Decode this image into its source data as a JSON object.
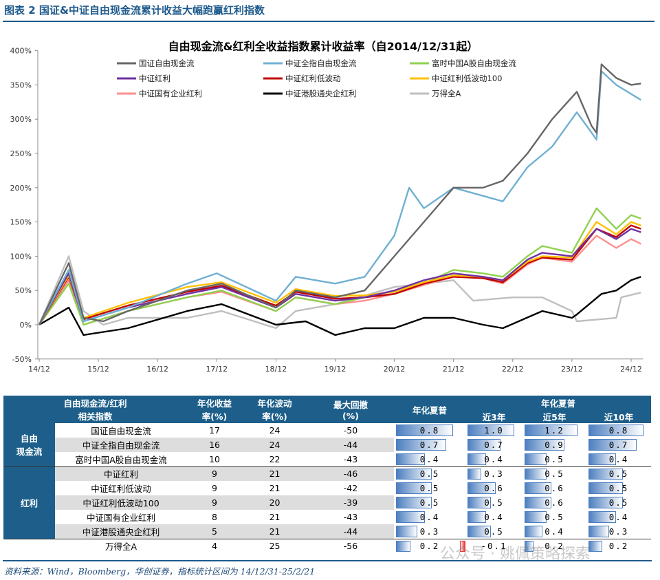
{
  "figure_title": "图表 2   国证&中证自由现金流累计收益大幅跑赢红利指数",
  "source": "资料来源：Wind，Bloomberg，华创证券，指标统计区间为 14/12/31-25/2/21",
  "watermark": "公众号 · 姚佩策略探索",
  "chart_data": {
    "type": "line",
    "title": "自由现金流&红利全收益指数累计收益率（自2014/12/31起）",
    "x_ticks": [
      "14/12",
      "15/12",
      "16/12",
      "17/12",
      "18/12",
      "19/12",
      "20/12",
      "21/12",
      "22/12",
      "23/12",
      "24/12"
    ],
    "y_ticks": [
      "-50%",
      "0%",
      "50%",
      "100%",
      "150%",
      "200%",
      "250%",
      "300%",
      "350%",
      "400%"
    ],
    "ylim": [
      -50,
      400
    ],
    "legend": "top",
    "series": [
      {
        "name": "国证自由现金流",
        "color": "#666666",
        "points": [
          [
            "2014-12",
            0
          ],
          [
            "2015-06",
            90
          ],
          [
            "2015-09",
            10
          ],
          [
            "2016-01",
            5
          ],
          [
            "2016-06",
            20
          ],
          [
            "2017-06",
            50
          ],
          [
            "2018-01",
            60
          ],
          [
            "2018-12",
            25
          ],
          [
            "2019-04",
            50
          ],
          [
            "2019-12",
            40
          ],
          [
            "2020-06",
            50
          ],
          [
            "2020-12",
            100
          ],
          [
            "2021-06",
            150
          ],
          [
            "2021-12",
            200
          ],
          [
            "2022-06",
            200
          ],
          [
            "2022-10",
            210
          ],
          [
            "2023-03",
            250
          ],
          [
            "2023-08",
            300
          ],
          [
            "2024-01",
            340
          ],
          [
            "2024-04",
            290
          ],
          [
            "2024-05",
            280
          ],
          [
            "2024-06",
            380
          ],
          [
            "2024-09",
            360
          ],
          [
            "2024-12",
            350
          ],
          [
            "2025-02",
            352
          ]
        ]
      },
      {
        "name": "中证全指自由现金流",
        "color": "#6fb0d2",
        "points": [
          [
            "2014-12",
            0
          ],
          [
            "2015-06",
            80
          ],
          [
            "2015-09",
            5
          ],
          [
            "2016-06",
            25
          ],
          [
            "2017-06",
            60
          ],
          [
            "2017-12",
            75
          ],
          [
            "2018-12",
            35
          ],
          [
            "2019-04",
            70
          ],
          [
            "2019-12",
            60
          ],
          [
            "2020-06",
            70
          ],
          [
            "2020-12",
            130
          ],
          [
            "2021-03",
            200
          ],
          [
            "2021-06",
            170
          ],
          [
            "2021-12",
            200
          ],
          [
            "2022-10",
            180
          ],
          [
            "2023-03",
            230
          ],
          [
            "2023-08",
            260
          ],
          [
            "2024-01",
            310
          ],
          [
            "2024-04",
            280
          ],
          [
            "2024-05",
            270
          ],
          [
            "2024-06",
            370
          ],
          [
            "2024-09",
            350
          ],
          [
            "2025-02",
            328
          ]
        ]
      },
      {
        "name": "富时中国A股自由现金流",
        "color": "#8fd14f",
        "points": [
          [
            "2014-12",
            0
          ],
          [
            "2015-06",
            60
          ],
          [
            "2015-09",
            0
          ],
          [
            "2016-06",
            20
          ],
          [
            "2017-06",
            40
          ],
          [
            "2018-01",
            50
          ],
          [
            "2018-12",
            20
          ],
          [
            "2019-04",
            40
          ],
          [
            "2019-12",
            30
          ],
          [
            "2020-06",
            40
          ],
          [
            "2020-12",
            45
          ],
          [
            "2021-06",
            60
          ],
          [
            "2021-12",
            80
          ],
          [
            "2022-06",
            75
          ],
          [
            "2022-10",
            70
          ],
          [
            "2023-03",
            100
          ],
          [
            "2023-06",
            115
          ],
          [
            "2023-12",
            105
          ],
          [
            "2024-05",
            170
          ],
          [
            "2024-09",
            140
          ],
          [
            "2024-12",
            160
          ],
          [
            "2025-02",
            155
          ]
        ]
      },
      {
        "name": "中证红利",
        "color": "#7030a0",
        "points": [
          [
            "2014-12",
            0
          ],
          [
            "2015-06",
            75
          ],
          [
            "2015-09",
            5
          ],
          [
            "2016-06",
            25
          ],
          [
            "2017-06",
            45
          ],
          [
            "2018-01",
            55
          ],
          [
            "2018-12",
            25
          ],
          [
            "2019-04",
            45
          ],
          [
            "2019-12",
            35
          ],
          [
            "2020-06",
            40
          ],
          [
            "2020-12",
            50
          ],
          [
            "2021-06",
            65
          ],
          [
            "2021-12",
            75
          ],
          [
            "2022-06",
            70
          ],
          [
            "2022-10",
            65
          ],
          [
            "2023-03",
            95
          ],
          [
            "2023-06",
            105
          ],
          [
            "2023-12",
            100
          ],
          [
            "2024-05",
            140
          ],
          [
            "2024-09",
            125
          ],
          [
            "2024-12",
            140
          ],
          [
            "2025-02",
            135
          ]
        ]
      },
      {
        "name": "中证红利低波动",
        "color": "#c00000",
        "points": [
          [
            "2014-12",
            0
          ],
          [
            "2015-06",
            70
          ],
          [
            "2015-09",
            8
          ],
          [
            "2016-06",
            28
          ],
          [
            "2017-06",
            48
          ],
          [
            "2018-01",
            57
          ],
          [
            "2018-12",
            28
          ],
          [
            "2019-04",
            48
          ],
          [
            "2019-12",
            38
          ],
          [
            "2020-06",
            40
          ],
          [
            "2020-12",
            45
          ],
          [
            "2021-06",
            60
          ],
          [
            "2021-12",
            70
          ],
          [
            "2022-06",
            68
          ],
          [
            "2022-10",
            62
          ],
          [
            "2023-03",
            90
          ],
          [
            "2023-06",
            98
          ],
          [
            "2023-12",
            95
          ],
          [
            "2024-05",
            140
          ],
          [
            "2024-09",
            128
          ],
          [
            "2024-12",
            145
          ],
          [
            "2025-02",
            140
          ]
        ]
      },
      {
        "name": "中证红利低波动100",
        "color": "#ffc000",
        "points": [
          [
            "2014-12",
            0
          ],
          [
            "2015-06",
            72
          ],
          [
            "2015-09",
            10
          ],
          [
            "2016-06",
            32
          ],
          [
            "2017-06",
            55
          ],
          [
            "2018-01",
            62
          ],
          [
            "2018-12",
            32
          ],
          [
            "2019-04",
            52
          ],
          [
            "2019-12",
            42
          ],
          [
            "2020-06",
            43
          ],
          [
            "2020-12",
            48
          ],
          [
            "2021-06",
            62
          ],
          [
            "2021-12",
            72
          ],
          [
            "2022-06",
            70
          ],
          [
            "2022-10",
            65
          ],
          [
            "2023-03",
            92
          ],
          [
            "2023-06",
            100
          ],
          [
            "2023-12",
            98
          ],
          [
            "2024-05",
            150
          ],
          [
            "2024-09",
            132
          ],
          [
            "2024-12",
            150
          ],
          [
            "2025-02",
            145
          ]
        ]
      },
      {
        "name": "中证国有企业红利",
        "color": "#ff8f8f",
        "points": [
          [
            "2014-12",
            0
          ],
          [
            "2015-06",
            65
          ],
          [
            "2015-09",
            0
          ],
          [
            "2016-06",
            20
          ],
          [
            "2017-06",
            40
          ],
          [
            "2018-01",
            48
          ],
          [
            "2018-12",
            20
          ],
          [
            "2019-04",
            40
          ],
          [
            "2019-12",
            30
          ],
          [
            "2020-06",
            35
          ],
          [
            "2020-12",
            45
          ],
          [
            "2021-06",
            58
          ],
          [
            "2021-12",
            70
          ],
          [
            "2022-06",
            68
          ],
          [
            "2022-10",
            60
          ],
          [
            "2023-03",
            88
          ],
          [
            "2023-06",
            98
          ],
          [
            "2023-12",
            92
          ],
          [
            "2024-05",
            130
          ],
          [
            "2024-09",
            112
          ],
          [
            "2024-12",
            125
          ],
          [
            "2025-02",
            118
          ]
        ]
      },
      {
        "name": "中证港股通央企红利",
        "color": "#000000",
        "points": [
          [
            "2014-12",
            0
          ],
          [
            "2015-06",
            25
          ],
          [
            "2015-09",
            -15
          ],
          [
            "2016-06",
            -5
          ],
          [
            "2017-06",
            20
          ],
          [
            "2018-01",
            30
          ],
          [
            "2018-12",
            0
          ],
          [
            "2019-06",
            5
          ],
          [
            "2019-12",
            -15
          ],
          [
            "2020-06",
            -5
          ],
          [
            "2020-12",
            -5
          ],
          [
            "2021-06",
            10
          ],
          [
            "2021-12",
            10
          ],
          [
            "2022-06",
            0
          ],
          [
            "2022-10",
            -5
          ],
          [
            "2023-06",
            20
          ],
          [
            "2023-12",
            10
          ],
          [
            "2024-01",
            15
          ],
          [
            "2024-06",
            45
          ],
          [
            "2024-09",
            50
          ],
          [
            "2024-12",
            65
          ],
          [
            "2025-02",
            70
          ]
        ]
      },
      {
        "name": "万得全A",
        "color": "#bfbfbf",
        "points": [
          [
            "2014-12",
            0
          ],
          [
            "2015-06",
            100
          ],
          [
            "2015-09",
            20
          ],
          [
            "2016-01",
            0
          ],
          [
            "2016-06",
            10
          ],
          [
            "2017-06",
            10
          ],
          [
            "2018-01",
            20
          ],
          [
            "2018-12",
            -5
          ],
          [
            "2019-04",
            20
          ],
          [
            "2019-12",
            30
          ],
          [
            "2020-12",
            55
          ],
          [
            "2021-06",
            60
          ],
          [
            "2021-12",
            65
          ],
          [
            "2022-04",
            35
          ],
          [
            "2022-12",
            40
          ],
          [
            "2023-06",
            40
          ],
          [
            "2023-12",
            20
          ],
          [
            "2024-01",
            5
          ],
          [
            "2024-09",
            10
          ],
          [
            "2024-10",
            40
          ],
          [
            "2025-02",
            47
          ]
        ]
      }
    ]
  },
  "table": {
    "headers": {
      "name": "自由现金流/红利\n相关指数",
      "ret": "年化收益\n率(%)",
      "vol": "年化波动\n率(%)",
      "mdd": "最大回撤\n(%)",
      "sharpe": "年化夏普",
      "sharpe_group": "年化夏普",
      "y3": "近3年",
      "y5": "近5年",
      "y10": "近10年"
    },
    "groups": [
      {
        "label": "自由\n现金流"
      },
      {
        "label": "红利"
      }
    ],
    "rows": [
      {
        "name": "国证自由现金流",
        "ret": "17",
        "vol": "24",
        "mdd": "-50",
        "sharpe": "0.8",
        "y3": "1.0",
        "y5": "1.2",
        "y10": "0.8"
      },
      {
        "name": "中证全指自由现金流",
        "ret": "16",
        "vol": "24",
        "mdd": "-44",
        "sharpe": "0.7",
        "y3": "0.7",
        "y5": "0.9",
        "y10": "0.7"
      },
      {
        "name": "富时中国A股自由现金流",
        "ret": "10",
        "vol": "22",
        "mdd": "-43",
        "sharpe": "0.4",
        "y3": "0.4",
        "y5": "0.5",
        "y10": "0.4"
      },
      {
        "name": "中证红利",
        "ret": "9",
        "vol": "21",
        "mdd": "-46",
        "sharpe": "0.5",
        "y3": "0.3",
        "y5": "0.5",
        "y10": "0.5"
      },
      {
        "name": "中证红利低波动",
        "ret": "9",
        "vol": "21",
        "mdd": "-42",
        "sharpe": "0.5",
        "y3": "0.6",
        "y5": "0.6",
        "y10": "0.5"
      },
      {
        "name": "中证红利低波动100",
        "ret": "9",
        "vol": "20",
        "mdd": "-39",
        "sharpe": "0.5",
        "y3": "0.5",
        "y5": "0.6",
        "y10": "0.5"
      },
      {
        "name": "中证国有企业红利",
        "ret": "8",
        "vol": "21",
        "mdd": "-43",
        "sharpe": "0.4",
        "y3": "0.4",
        "y5": "0.5",
        "y10": "0.4"
      },
      {
        "name": "中证港股通央企红利",
        "ret": "5",
        "vol": "21",
        "mdd": "-44",
        "sharpe": "0.3",
        "y3": "0.5",
        "y5": "0.4",
        "y10": "0.3"
      },
      {
        "name": "万得全A",
        "ret": "4",
        "vol": "25",
        "mdd": "-56",
        "sharpe": "0.2",
        "y3": "-0.1",
        "y5": "0.2",
        "y10": "0.2"
      }
    ]
  }
}
